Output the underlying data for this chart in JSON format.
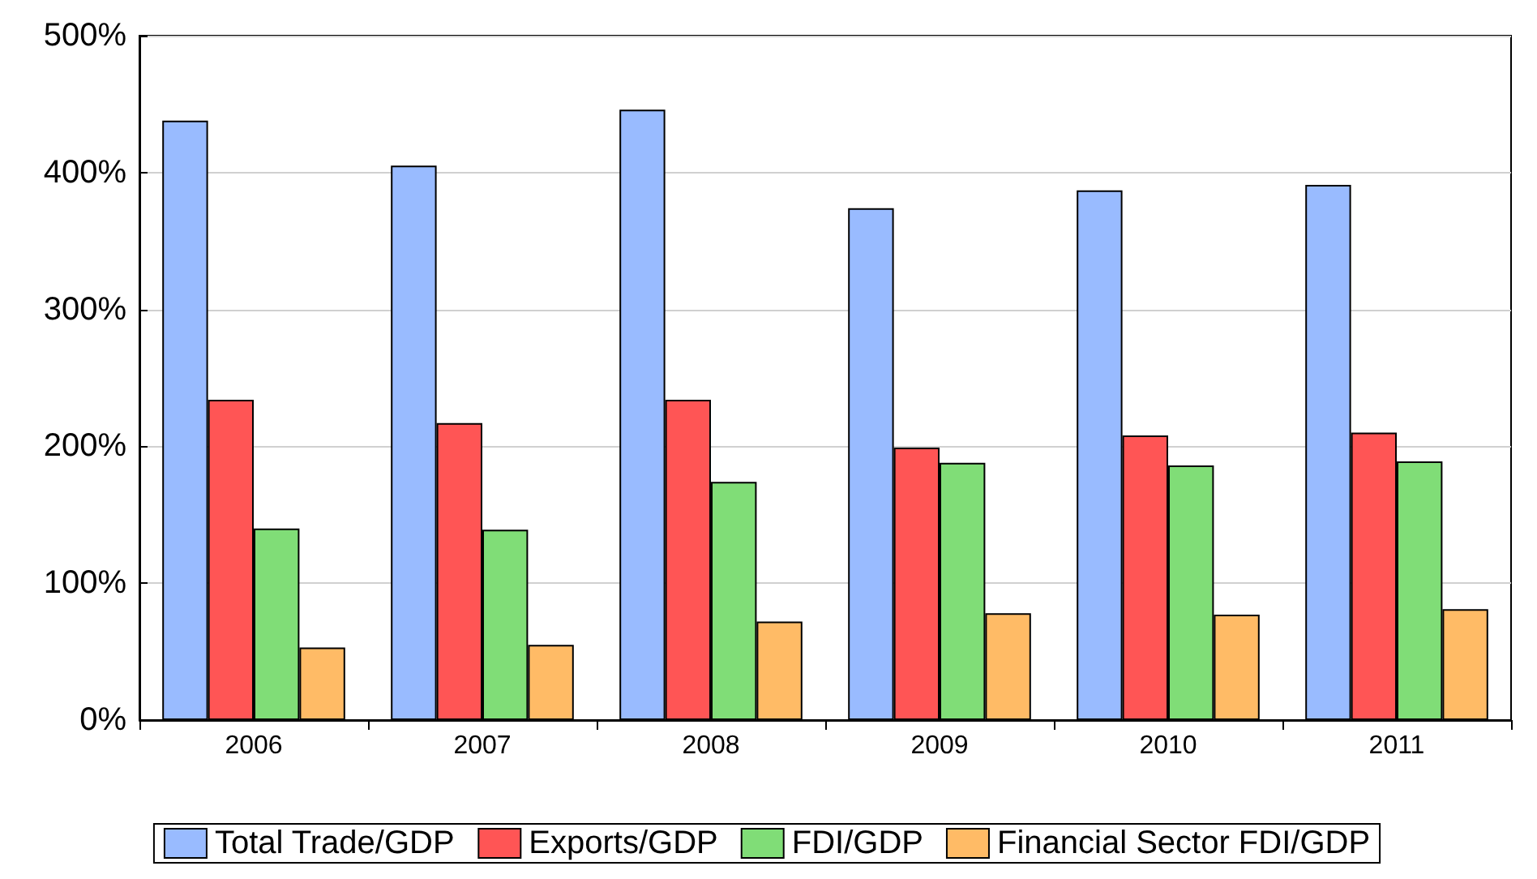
{
  "chart_data": {
    "type": "bar",
    "categories": [
      "2006",
      "2007",
      "2008",
      "2009",
      "2010",
      "2011"
    ],
    "series": [
      {
        "name": "Total Trade/GDP",
        "color": "#99bbff",
        "values": [
          438,
          405,
          446,
          374,
          387,
          391
        ]
      },
      {
        "name": "Exports/GDP",
        "color": "#ff5555",
        "values": [
          234,
          217,
          234,
          199,
          208,
          210
        ]
      },
      {
        "name": "FDI/GDP",
        "color": "#80dd77",
        "values": [
          140,
          139,
          174,
          188,
          186,
          189
        ]
      },
      {
        "name": "Financial Sector FDI/GDP",
        "color": "#ffbb66",
        "values": [
          53,
          55,
          72,
          78,
          77,
          81
        ]
      }
    ],
    "ylim": [
      0,
      500
    ],
    "yticks": [
      {
        "value": 0,
        "label": "0%"
      },
      {
        "value": 100,
        "label": "100%"
      },
      {
        "value": 200,
        "label": "200%"
      },
      {
        "value": 300,
        "label": "300%"
      },
      {
        "value": 400,
        "label": "400%"
      },
      {
        "value": 500,
        "label": "500%"
      }
    ],
    "grid": "y",
    "legend": "bottom"
  }
}
